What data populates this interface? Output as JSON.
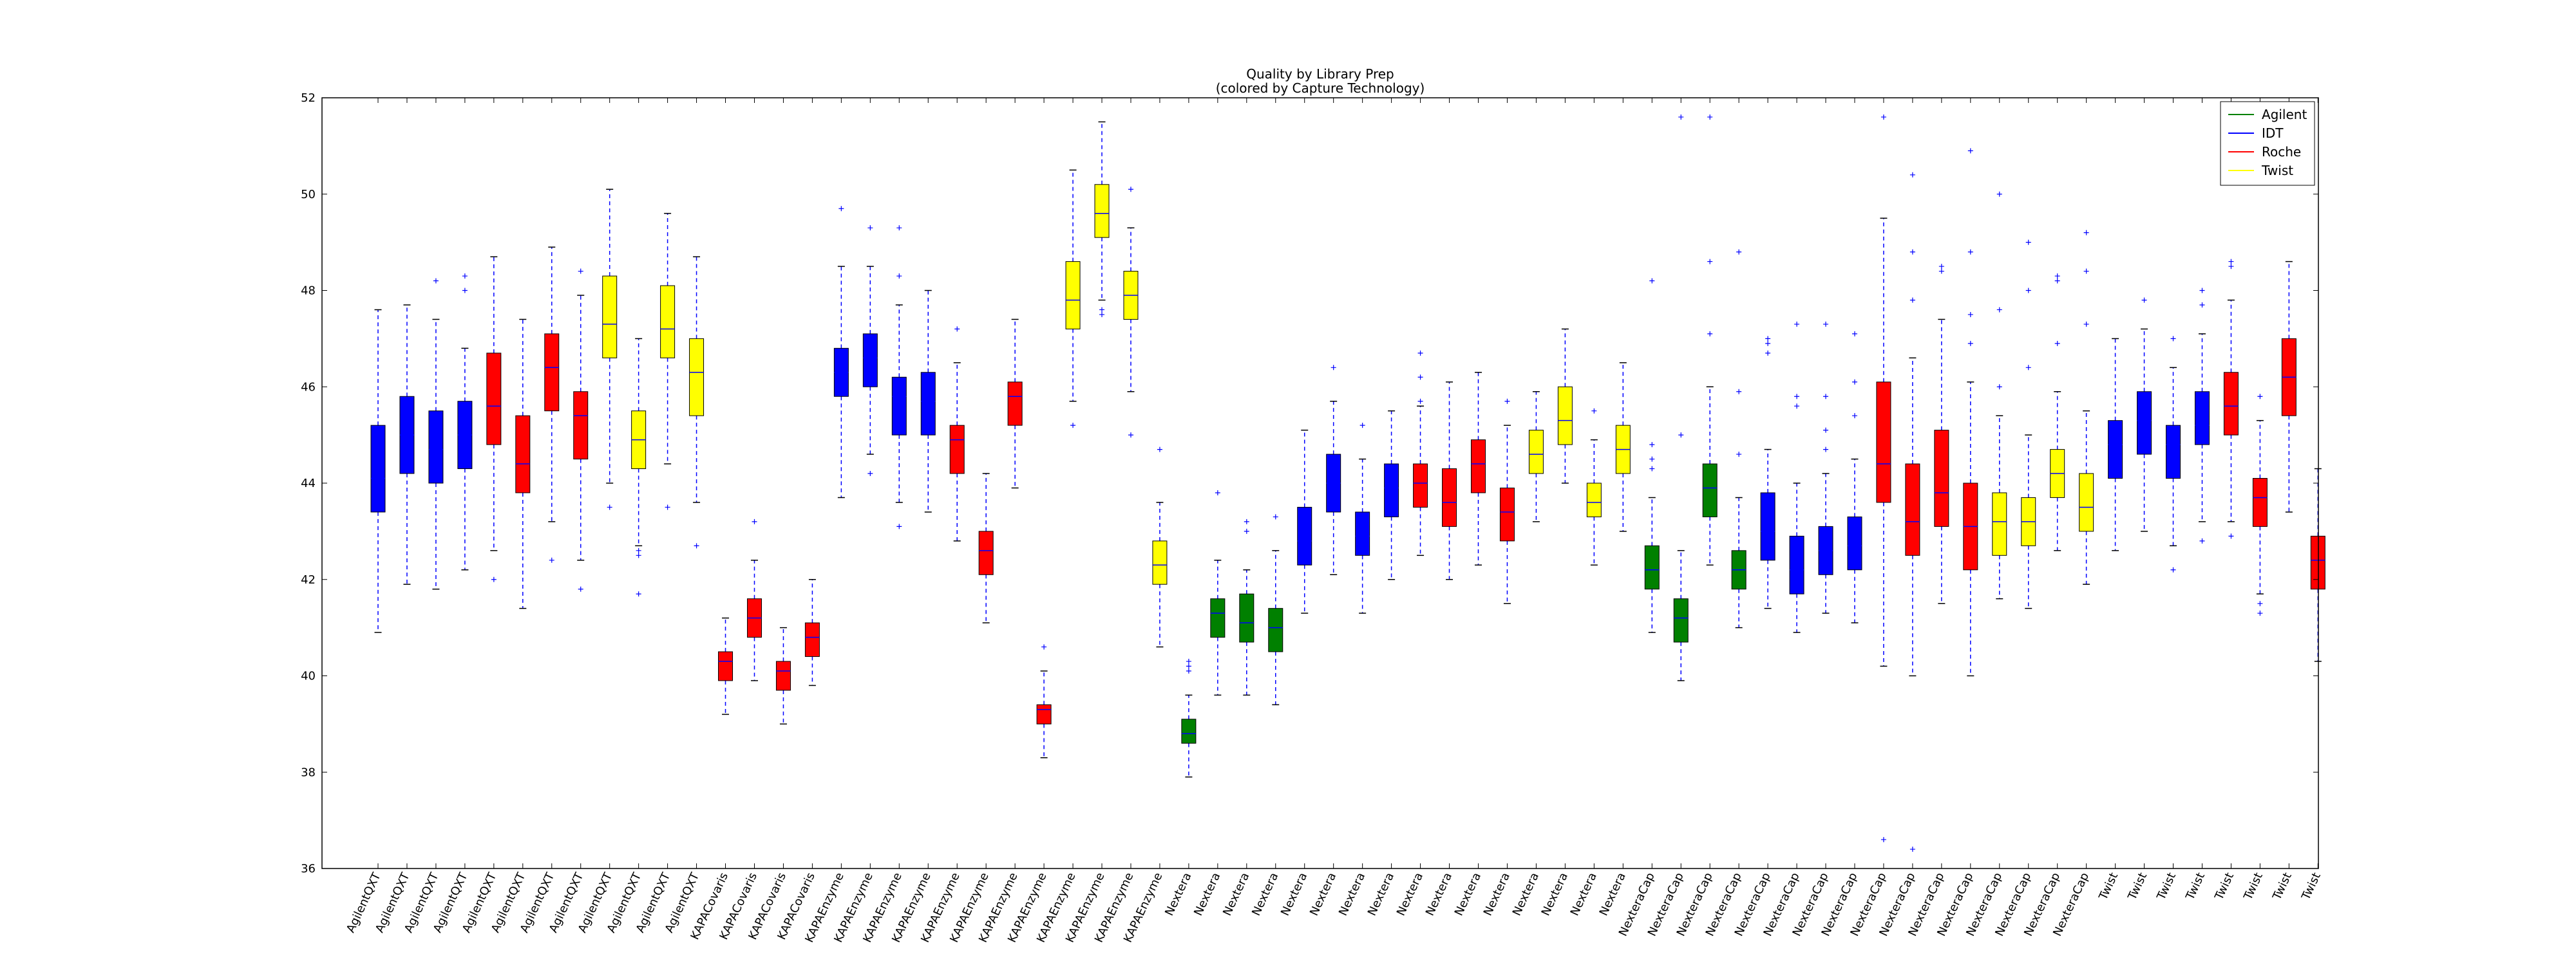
{
  "chart_data": {
    "type": "box",
    "title": "Quality by Library Prep",
    "subtitle": "(colored by Capture Technology)",
    "xlabel": "",
    "ylabel": "",
    "ylim": [
      36,
      52
    ],
    "yticks": [
      36,
      38,
      40,
      42,
      44,
      46,
      48,
      50,
      52
    ],
    "grid": false,
    "legend_position": "top-right",
    "legend": [
      {
        "name": "Agilent",
        "color": "#008000"
      },
      {
        "name": "IDT",
        "color": "#0000ff"
      },
      {
        "name": "Roche",
        "color": "#ff0000"
      },
      {
        "name": "Twist",
        "color": "#ffff00"
      }
    ],
    "boxes": [
      {
        "label": "AgilentQXT",
        "tech": "IDT",
        "wlo": 40.9,
        "q1": 43.4,
        "med": 44.1,
        "q3": 45.2,
        "whi": 47.6,
        "fliers": []
      },
      {
        "label": "AgilentQXT",
        "tech": "IDT",
        "wlo": 41.9,
        "q1": 44.2,
        "med": 45.0,
        "q3": 45.8,
        "whi": 47.7,
        "fliers": []
      },
      {
        "label": "AgilentQXT",
        "tech": "IDT",
        "wlo": 41.8,
        "q1": 44.0,
        "med": 44.7,
        "q3": 45.5,
        "whi": 47.4,
        "fliers": [
          48.2
        ]
      },
      {
        "label": "AgilentQXT",
        "tech": "IDT",
        "wlo": 42.2,
        "q1": 44.3,
        "med": 45.0,
        "q3": 45.7,
        "whi": 46.8,
        "fliers": [
          48.0,
          48.3
        ]
      },
      {
        "label": "AgilentQXT",
        "tech": "Roche",
        "wlo": 42.6,
        "q1": 44.8,
        "med": 45.6,
        "q3": 46.7,
        "whi": 48.7,
        "fliers": [
          42.0
        ]
      },
      {
        "label": "AgilentQXT",
        "tech": "Roche",
        "wlo": 41.4,
        "q1": 43.8,
        "med": 44.4,
        "q3": 45.4,
        "whi": 47.4,
        "fliers": []
      },
      {
        "label": "AgilentQXT",
        "tech": "Roche",
        "wlo": 43.2,
        "q1": 45.5,
        "med": 46.4,
        "q3": 47.1,
        "whi": 48.9,
        "fliers": [
          42.4
        ]
      },
      {
        "label": "AgilentQXT",
        "tech": "Roche",
        "wlo": 42.4,
        "q1": 44.5,
        "med": 45.4,
        "q3": 45.9,
        "whi": 47.9,
        "fliers": [
          41.8,
          48.4
        ]
      },
      {
        "label": "AgilentQXT",
        "tech": "Twist",
        "wlo": 44.0,
        "q1": 46.6,
        "med": 47.3,
        "q3": 48.3,
        "whi": 50.1,
        "fliers": [
          43.5
        ]
      },
      {
        "label": "AgilentQXT",
        "tech": "Twist",
        "wlo": 42.7,
        "q1": 44.3,
        "med": 44.9,
        "q3": 45.5,
        "whi": 47.0,
        "fliers": [
          41.7,
          42.5,
          42.6
        ]
      },
      {
        "label": "AgilentQXT",
        "tech": "Twist",
        "wlo": 44.4,
        "q1": 46.6,
        "med": 47.2,
        "q3": 48.1,
        "whi": 49.6,
        "fliers": [
          43.5
        ]
      },
      {
        "label": "AgilentQXT",
        "tech": "Twist",
        "wlo": 43.6,
        "q1": 45.4,
        "med": 46.3,
        "q3": 47.0,
        "whi": 48.7,
        "fliers": [
          42.7
        ]
      },
      {
        "label": "KAPACovaris",
        "tech": "Roche",
        "wlo": 39.2,
        "q1": 39.9,
        "med": 40.3,
        "q3": 40.5,
        "whi": 41.2,
        "fliers": []
      },
      {
        "label": "KAPACovaris",
        "tech": "Roche",
        "wlo": 39.9,
        "q1": 40.8,
        "med": 41.2,
        "q3": 41.6,
        "whi": 42.4,
        "fliers": [
          43.2
        ]
      },
      {
        "label": "KAPACovaris",
        "tech": "Roche",
        "wlo": 39.0,
        "q1": 39.7,
        "med": 40.1,
        "q3": 40.3,
        "whi": 41.0,
        "fliers": []
      },
      {
        "label": "KAPACovaris",
        "tech": "Roche",
        "wlo": 39.8,
        "q1": 40.4,
        "med": 40.8,
        "q3": 41.1,
        "whi": 42.0,
        "fliers": []
      },
      {
        "label": "KAPAEnzyme",
        "tech": "IDT",
        "wlo": 43.7,
        "q1": 45.8,
        "med": 46.3,
        "q3": 46.8,
        "whi": 48.5,
        "fliers": [
          49.7
        ]
      },
      {
        "label": "KAPAEnzyme",
        "tech": "IDT",
        "wlo": 44.6,
        "q1": 46.0,
        "med": 46.6,
        "q3": 47.1,
        "whi": 48.5,
        "fliers": [
          44.2,
          49.3
        ]
      },
      {
        "label": "KAPAEnzyme",
        "tech": "IDT",
        "wlo": 43.6,
        "q1": 45.0,
        "med": 45.8,
        "q3": 46.2,
        "whi": 47.7,
        "fliers": [
          43.1,
          48.3,
          49.3
        ]
      },
      {
        "label": "KAPAEnzyme",
        "tech": "IDT",
        "wlo": 43.4,
        "q1": 45.0,
        "med": 45.7,
        "q3": 46.3,
        "whi": 48.0,
        "fliers": []
      },
      {
        "label": "KAPAEnzyme",
        "tech": "Roche",
        "wlo": 42.8,
        "q1": 44.2,
        "med": 44.9,
        "q3": 45.2,
        "whi": 46.5,
        "fliers": [
          47.2
        ]
      },
      {
        "label": "KAPAEnzyme",
        "tech": "Roche",
        "wlo": 41.1,
        "q1": 42.1,
        "med": 42.6,
        "q3": 43.0,
        "whi": 44.2,
        "fliers": []
      },
      {
        "label": "KAPAEnzyme",
        "tech": "Roche",
        "wlo": 43.9,
        "q1": 45.2,
        "med": 45.8,
        "q3": 46.1,
        "whi": 47.4,
        "fliers": []
      },
      {
        "label": "KAPAEnzyme",
        "tech": "Roche",
        "wlo": 38.3,
        "q1": 39.0,
        "med": 39.3,
        "q3": 39.4,
        "whi": 40.1,
        "fliers": [
          40.6
        ]
      },
      {
        "label": "KAPAEnzyme",
        "tech": "Twist",
        "wlo": 45.7,
        "q1": 47.2,
        "med": 47.8,
        "q3": 48.6,
        "whi": 50.5,
        "fliers": [
          45.2
        ]
      },
      {
        "label": "KAPAEnzyme",
        "tech": "Twist",
        "wlo": 47.8,
        "q1": 49.1,
        "med": 49.6,
        "q3": 50.2,
        "whi": 51.5,
        "fliers": [
          47.5,
          47.6
        ]
      },
      {
        "label": "KAPAEnzyme",
        "tech": "Twist",
        "wlo": 45.9,
        "q1": 47.4,
        "med": 47.9,
        "q3": 48.4,
        "whi": 49.3,
        "fliers": [
          45.0,
          50.1
        ]
      },
      {
        "label": "KAPAEnzyme",
        "tech": "Twist",
        "wlo": 40.6,
        "q1": 41.9,
        "med": 42.3,
        "q3": 42.8,
        "whi": 43.6,
        "fliers": [
          44.7
        ]
      },
      {
        "label": "Nextera",
        "tech": "Agilent",
        "wlo": 37.9,
        "q1": 38.6,
        "med": 38.8,
        "q3": 39.1,
        "whi": 39.6,
        "fliers": [
          40.1,
          40.2,
          40.3
        ]
      },
      {
        "label": "Nextera",
        "tech": "Agilent",
        "wlo": 39.6,
        "q1": 40.8,
        "med": 41.3,
        "q3": 41.6,
        "whi": 42.4,
        "fliers": [
          43.8
        ]
      },
      {
        "label": "Nextera",
        "tech": "Agilent",
        "wlo": 39.6,
        "q1": 40.7,
        "med": 41.1,
        "q3": 41.7,
        "whi": 42.2,
        "fliers": [
          43.0,
          43.2
        ]
      },
      {
        "label": "Nextera",
        "tech": "Agilent",
        "wlo": 39.4,
        "q1": 40.5,
        "med": 41.0,
        "q3": 41.4,
        "whi": 42.6,
        "fliers": [
          43.3
        ]
      },
      {
        "label": "Nextera",
        "tech": "IDT",
        "wlo": 41.3,
        "q1": 42.3,
        "med": 42.8,
        "q3": 43.5,
        "whi": 45.1,
        "fliers": []
      },
      {
        "label": "Nextera",
        "tech": "IDT",
        "wlo": 42.1,
        "q1": 43.4,
        "med": 44.0,
        "q3": 44.6,
        "whi": 45.7,
        "fliers": [
          46.4
        ]
      },
      {
        "label": "Nextera",
        "tech": "IDT",
        "wlo": 41.3,
        "q1": 42.5,
        "med": 42.9,
        "q3": 43.4,
        "whi": 44.5,
        "fliers": [
          45.2
        ]
      },
      {
        "label": "Nextera",
        "tech": "IDT",
        "wlo": 42.0,
        "q1": 43.3,
        "med": 43.9,
        "q3": 44.4,
        "whi": 45.5,
        "fliers": []
      },
      {
        "label": "Nextera",
        "tech": "Roche",
        "wlo": 42.5,
        "q1": 43.5,
        "med": 44.0,
        "q3": 44.4,
        "whi": 45.6,
        "fliers": [
          45.7,
          46.2,
          46.7
        ]
      },
      {
        "label": "Nextera",
        "tech": "Roche",
        "wlo": 42.0,
        "q1": 43.1,
        "med": 43.6,
        "q3": 44.3,
        "whi": 46.1,
        "fliers": []
      },
      {
        "label": "Nextera",
        "tech": "Roche",
        "wlo": 42.3,
        "q1": 43.8,
        "med": 44.4,
        "q3": 44.9,
        "whi": 46.3,
        "fliers": []
      },
      {
        "label": "Nextera",
        "tech": "Roche",
        "wlo": 41.5,
        "q1": 42.8,
        "med": 43.4,
        "q3": 43.9,
        "whi": 45.2,
        "fliers": [
          45.7
        ]
      },
      {
        "label": "Nextera",
        "tech": "Twist",
        "wlo": 43.2,
        "q1": 44.2,
        "med": 44.6,
        "q3": 45.1,
        "whi": 45.9,
        "fliers": []
      },
      {
        "label": "Nextera",
        "tech": "Twist",
        "wlo": 44.0,
        "q1": 44.8,
        "med": 45.3,
        "q3": 46.0,
        "whi": 47.2,
        "fliers": []
      },
      {
        "label": "Nextera",
        "tech": "Twist",
        "wlo": 42.3,
        "q1": 43.3,
        "med": 43.6,
        "q3": 44.0,
        "whi": 44.9,
        "fliers": [
          45.5
        ]
      },
      {
        "label": "Nextera",
        "tech": "Twist",
        "wlo": 43.0,
        "q1": 44.2,
        "med": 44.7,
        "q3": 45.2,
        "whi": 46.5,
        "fliers": []
      },
      {
        "label": "NexteraCap",
        "tech": "Agilent",
        "wlo": 40.9,
        "q1": 41.8,
        "med": 42.2,
        "q3": 42.7,
        "whi": 43.7,
        "fliers": [
          44.3,
          44.5,
          44.8,
          48.2
        ]
      },
      {
        "label": "NexteraCap",
        "tech": "Agilent",
        "wlo": 39.9,
        "q1": 40.7,
        "med": 41.2,
        "q3": 41.6,
        "whi": 42.6,
        "fliers": [
          45.0,
          51.6
        ]
      },
      {
        "label": "NexteraCap",
        "tech": "Agilent",
        "wlo": 42.3,
        "q1": 43.3,
        "med": 43.9,
        "q3": 44.4,
        "whi": 46.0,
        "fliers": [
          47.1,
          48.6,
          51.6
        ]
      },
      {
        "label": "NexteraCap",
        "tech": "Agilent",
        "wlo": 41.0,
        "q1": 41.8,
        "med": 42.2,
        "q3": 42.6,
        "whi": 43.7,
        "fliers": [
          44.6,
          45.9,
          48.8
        ]
      },
      {
        "label": "NexteraCap",
        "tech": "IDT",
        "wlo": 41.4,
        "q1": 42.4,
        "med": 43.0,
        "q3": 43.8,
        "whi": 44.7,
        "fliers": [
          46.7,
          46.9,
          47.0
        ]
      },
      {
        "label": "NexteraCap",
        "tech": "IDT",
        "wlo": 40.9,
        "q1": 41.7,
        "med": 42.2,
        "q3": 42.9,
        "whi": 44.0,
        "fliers": [
          45.6,
          45.8,
          47.3
        ]
      },
      {
        "label": "NexteraCap",
        "tech": "IDT",
        "wlo": 41.3,
        "q1": 42.1,
        "med": 42.6,
        "q3": 43.1,
        "whi": 44.2,
        "fliers": [
          44.7,
          45.1,
          45.8,
          47.3
        ]
      },
      {
        "label": "NexteraCap",
        "tech": "IDT",
        "wlo": 41.1,
        "q1": 42.2,
        "med": 42.7,
        "q3": 43.3,
        "whi": 44.5,
        "fliers": [
          45.4,
          46.1,
          47.1
        ]
      },
      {
        "label": "NexteraCap",
        "tech": "Roche",
        "wlo": 40.2,
        "q1": 43.6,
        "med": 44.4,
        "q3": 46.1,
        "whi": 49.5,
        "fliers": [
          36.6,
          51.6
        ]
      },
      {
        "label": "NexteraCap",
        "tech": "Roche",
        "wlo": 40.0,
        "q1": 42.5,
        "med": 43.2,
        "q3": 44.4,
        "whi": 46.6,
        "fliers": [
          36.4,
          47.8,
          48.8,
          50.4
        ]
      },
      {
        "label": "NexteraCap",
        "tech": "Roche",
        "wlo": 41.5,
        "q1": 43.1,
        "med": 43.8,
        "q3": 45.1,
        "whi": 47.4,
        "fliers": [
          48.4,
          48.5
        ]
      },
      {
        "label": "NexteraCap",
        "tech": "Roche",
        "wlo": 40.0,
        "q1": 42.2,
        "med": 43.1,
        "q3": 44.0,
        "whi": 46.1,
        "fliers": [
          46.9,
          47.5,
          48.8,
          50.9
        ]
      },
      {
        "label": "NexteraCap",
        "tech": "Twist",
        "wlo": 41.6,
        "q1": 42.5,
        "med": 43.2,
        "q3": 43.8,
        "whi": 45.4,
        "fliers": [
          46.0,
          47.6,
          50.0
        ]
      },
      {
        "label": "NexteraCap",
        "tech": "Twist",
        "wlo": 41.4,
        "q1": 42.7,
        "med": 43.2,
        "q3": 43.7,
        "whi": 45.0,
        "fliers": [
          46.4,
          48.0,
          49.0
        ]
      },
      {
        "label": "NexteraCap",
        "tech": "Twist",
        "wlo": 42.6,
        "q1": 43.7,
        "med": 44.2,
        "q3": 44.7,
        "whi": 45.9,
        "fliers": [
          46.9,
          48.2,
          48.3
        ]
      },
      {
        "label": "NexteraCap",
        "tech": "Twist",
        "wlo": 41.9,
        "q1": 43.0,
        "med": 43.5,
        "q3": 44.2,
        "whi": 45.5,
        "fliers": [
          47.3,
          48.4,
          49.2
        ]
      },
      {
        "label": "Twist",
        "tech": "IDT",
        "wlo": 42.6,
        "q1": 44.1,
        "med": 44.8,
        "q3": 45.3,
        "whi": 47.0,
        "fliers": []
      },
      {
        "label": "Twist",
        "tech": "IDT",
        "wlo": 43.0,
        "q1": 44.6,
        "med": 45.3,
        "q3": 45.9,
        "whi": 47.2,
        "fliers": [
          47.8
        ]
      },
      {
        "label": "Twist",
        "tech": "IDT",
        "wlo": 42.7,
        "q1": 44.1,
        "med": 44.8,
        "q3": 45.2,
        "whi": 46.4,
        "fliers": [
          42.2,
          47.0
        ]
      },
      {
        "label": "Twist",
        "tech": "IDT",
        "wlo": 43.2,
        "q1": 44.8,
        "med": 45.2,
        "q3": 45.9,
        "whi": 47.1,
        "fliers": [
          42.8,
          47.7,
          48.0
        ]
      },
      {
        "label": "Twist",
        "tech": "Roche",
        "wlo": 43.2,
        "q1": 45.0,
        "med": 45.6,
        "q3": 46.3,
        "whi": 47.8,
        "fliers": [
          42.9,
          48.5,
          48.6
        ]
      },
      {
        "label": "Twist",
        "tech": "Roche",
        "wlo": 41.7,
        "q1": 43.1,
        "med": 43.7,
        "q3": 44.1,
        "whi": 45.3,
        "fliers": [
          41.3,
          41.5,
          45.8
        ]
      },
      {
        "label": "Twist",
        "tech": "Roche",
        "wlo": 43.4,
        "q1": 45.4,
        "med": 46.2,
        "q3": 47.0,
        "whi": 48.6,
        "fliers": []
      },
      {
        "label": "Twist",
        "tech": "Roche",
        "wlo": 40.3,
        "q1": 41.8,
        "med": 42.4,
        "q3": 42.9,
        "whi": 44.3,
        "fliers": []
      }
    ]
  }
}
